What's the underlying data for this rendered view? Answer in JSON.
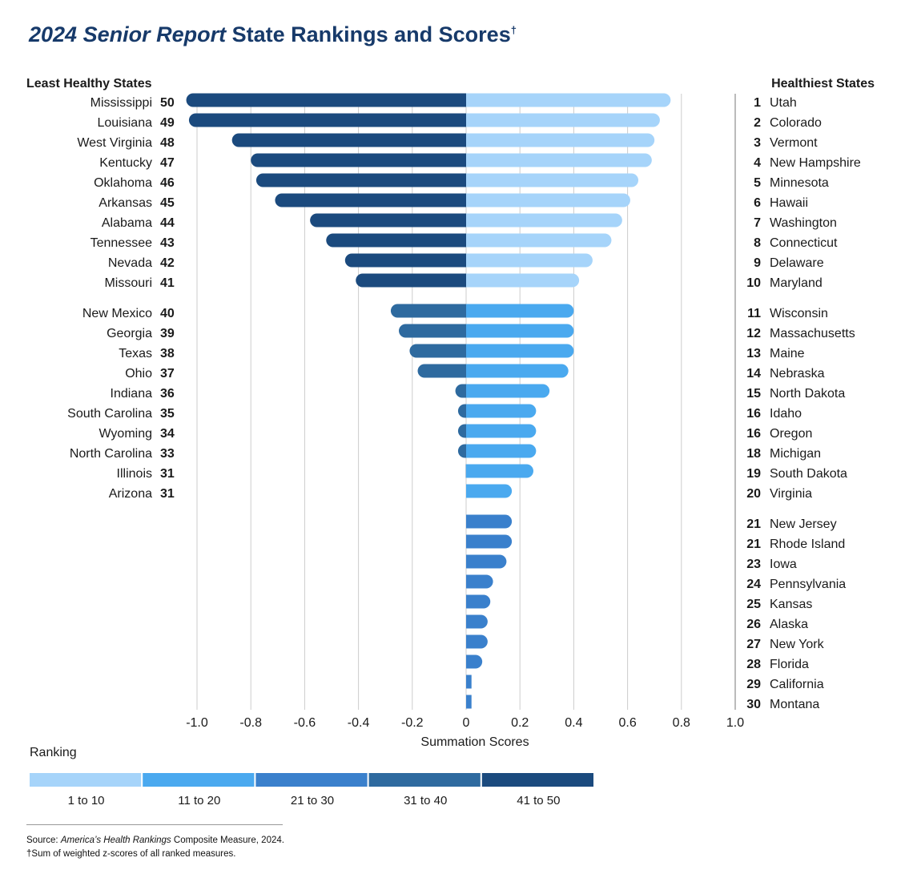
{
  "chart_data": {
    "type": "diverging-bar",
    "title_parts": [
      "2024 Senior Report",
      " State Rankings and Scores",
      "†"
    ],
    "left_header": "Least Healthy States",
    "right_header": "Healthiest States",
    "x_label": "Summation Scores",
    "xlim": [
      -1.0,
      1.0
    ],
    "xticks": [
      {
        "value": -1.0,
        "label": "-1.0"
      },
      -0.8,
      -0.6,
      -0.4,
      -0.2,
      0,
      0.2,
      0.4,
      0.6,
      0.8,
      {
        "value": 1.0,
        "label": "1.0"
      }
    ],
    "grid": true,
    "least_healthy": {
      "states": [
        "Mississippi",
        "Louisiana",
        "West Virginia",
        "Kentucky",
        "Oklahoma",
        "Arkansas",
        "Alabama",
        "Tennessee",
        "Nevada",
        "Missouri",
        "New Mexico",
        "Georgia",
        "Texas",
        "Ohio",
        "Indiana",
        "South Carolina",
        "Wyoming",
        "North Carolina",
        "Illinois",
        "Arizona"
      ],
      "ranks": [
        50,
        49,
        48,
        47,
        46,
        45,
        44,
        43,
        42,
        41,
        40,
        39,
        38,
        37,
        36,
        35,
        34,
        33,
        31,
        31
      ],
      "values": [
        -1.04,
        -1.03,
        -0.87,
        -0.8,
        -0.78,
        -0.71,
        -0.58,
        -0.52,
        -0.45,
        -0.41,
        -0.28,
        -0.25,
        -0.21,
        -0.18,
        -0.04,
        -0.03,
        -0.03,
        -0.03,
        -0.001,
        0
      ]
    },
    "healthiest": {
      "states": [
        "Utah",
        "Colorado",
        "Vermont",
        "New Hampshire",
        "Minnesota",
        "Hawaii",
        "Washington",
        "Connecticut",
        "Delaware",
        "Maryland",
        "Wisconsin",
        "Massachusetts",
        "Maine",
        "Nebraska",
        "North Dakota",
        "Idaho",
        "Oregon",
        "Michigan",
        "South Dakota",
        "Virginia",
        "New Jersey",
        "Rhode Island",
        "Iowa",
        "Pennsylvania",
        "Kansas",
        "Alaska",
        "New York",
        "Florida",
        "California",
        "Montana"
      ],
      "ranks": [
        1,
        2,
        3,
        4,
        5,
        6,
        7,
        8,
        9,
        10,
        11,
        12,
        13,
        14,
        15,
        16,
        16,
        18,
        19,
        20,
        21,
        21,
        23,
        24,
        25,
        26,
        27,
        28,
        29,
        30
      ],
      "values": [
        0.76,
        0.72,
        0.7,
        0.69,
        0.64,
        0.61,
        0.58,
        0.54,
        0.47,
        0.42,
        0.4,
        0.4,
        0.4,
        0.38,
        0.31,
        0.26,
        0.26,
        0.26,
        0.25,
        0.17,
        0.17,
        0.17,
        0.15,
        0.1,
        0.09,
        0.08,
        0.08,
        0.06,
        0.02,
        0.02
      ]
    },
    "legend_title": "Ranking",
    "legend": [
      {
        "label": "1 to 10",
        "range": [
          1,
          10
        ],
        "color": "#a6d4fa"
      },
      {
        "label": "11 to 20",
        "range": [
          11,
          20
        ],
        "color": "#4aa9ef"
      },
      {
        "label": "21 to 30",
        "range": [
          21,
          30
        ],
        "color": "#3a80cc"
      },
      {
        "label": "31 to 40",
        "range": [
          31,
          40
        ],
        "color": "#2e6a9f"
      },
      {
        "label": "41 to 50",
        "range": [
          41,
          50
        ],
        "color": "#1b4a7e"
      }
    ],
    "source_parts": [
      "Source: ",
      "America’s Health Rankings",
      " Composite Measure, 2024."
    ],
    "footnote": "†Sum of weighted z-scores of all ranked measures."
  }
}
